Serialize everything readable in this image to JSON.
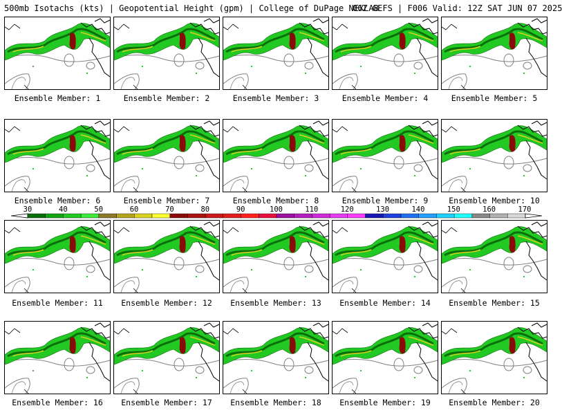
{
  "header": {
    "title": "500mb Isotachs (kts) | Geopotential Height (gpm) | College of DuPage NEXLAB",
    "run_info": "06Z GEFS | F006 Valid: 12Z SAT JUN 07 2025"
  },
  "panels": [
    {
      "label": "Ensemble Member: 1"
    },
    {
      "label": "Ensemble Member: 2"
    },
    {
      "label": "Ensemble Member: 3"
    },
    {
      "label": "Ensemble Member: 4"
    },
    {
      "label": "Ensemble Member: 5"
    },
    {
      "label": "Ensemble Member: 6"
    },
    {
      "label": "Ensemble Member: 7"
    },
    {
      "label": "Ensemble Member: 8"
    },
    {
      "label": "Ensemble Member: 9"
    },
    {
      "label": "Ensemble Member: 10"
    },
    {
      "label": "Ensemble Member: 11"
    },
    {
      "label": "Ensemble Member: 12"
    },
    {
      "label": "Ensemble Member: 13"
    },
    {
      "label": "Ensemble Member: 14"
    },
    {
      "label": "Ensemble Member: 15"
    },
    {
      "label": "Ensemble Member: 16"
    },
    {
      "label": "Ensemble Member: 17"
    },
    {
      "label": "Ensemble Member: 18"
    },
    {
      "label": "Ensemble Member: 19"
    },
    {
      "label": "Ensemble Member: 20"
    }
  ],
  "legend": {
    "ticks": [
      "30",
      "40",
      "50",
      "60",
      "70",
      "80",
      "90",
      "100",
      "110",
      "120",
      "130",
      "140",
      "150",
      "160",
      "170"
    ],
    "colors": [
      "#0a6e0a",
      "#13a313",
      "#22c922",
      "#3ce83c",
      "#8c7a2a",
      "#b8a41c",
      "#dcd21e",
      "#ffff2e",
      "#8a0a0a",
      "#a81212",
      "#c81a1a",
      "#e01e1e",
      "#ff2020",
      "#e81040",
      "#9a10a0",
      "#b41cc0",
      "#d02ad8",
      "#e83af0",
      "#ff3cff",
      "#1818b0",
      "#1e40e0",
      "#2070f0",
      "#20a0ff",
      "#20d0ff",
      "#20ffff",
      "#888888",
      "#b0b0b0",
      "#d8d8d8"
    ]
  },
  "map_colors": {
    "jet_outer": "#22c922",
    "jet_inner": "#0a6e0a",
    "jet_core_yellow": "#dcd21e",
    "jet_core_red": "#8a0a0a",
    "height_contour": "#808080",
    "border": "#000000"
  }
}
